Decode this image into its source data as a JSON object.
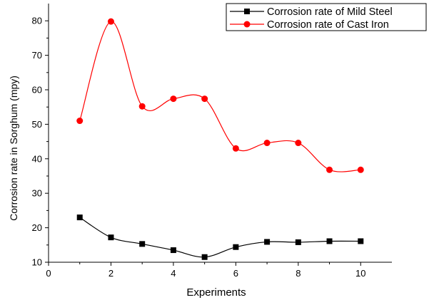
{
  "chart_data": {
    "type": "line",
    "title": "",
    "xlabel": "Experiments",
    "ylabel": "Corrosion rate in Sorghum (mpy)",
    "xlim": [
      0,
      11
    ],
    "ylim": [
      10,
      85
    ],
    "xticks": [
      "0",
      "2",
      "4",
      "6",
      "8",
      "10"
    ],
    "yticks": [
      "10",
      "20",
      "30",
      "40",
      "50",
      "60",
      "70",
      "80"
    ],
    "grid": false,
    "legend_position": "top-right",
    "smooth": true,
    "x": [
      1,
      2,
      3,
      4,
      5,
      6,
      7,
      8,
      9,
      10
    ],
    "series": [
      {
        "name": "Corrosion rate of Mild Steel",
        "marker": "square",
        "color": "#000000",
        "values": [
          23.0,
          17.2,
          15.3,
          13.5,
          11.5,
          14.4,
          15.9,
          15.8,
          16.1,
          16.1
        ]
      },
      {
        "name": "Corrosion rate of Cast Iron",
        "marker": "circle",
        "color": "#ff0000",
        "values": [
          51.0,
          79.8,
          55.2,
          57.4,
          57.4,
          43.0,
          44.6,
          44.6,
          36.8,
          36.8
        ]
      }
    ]
  }
}
